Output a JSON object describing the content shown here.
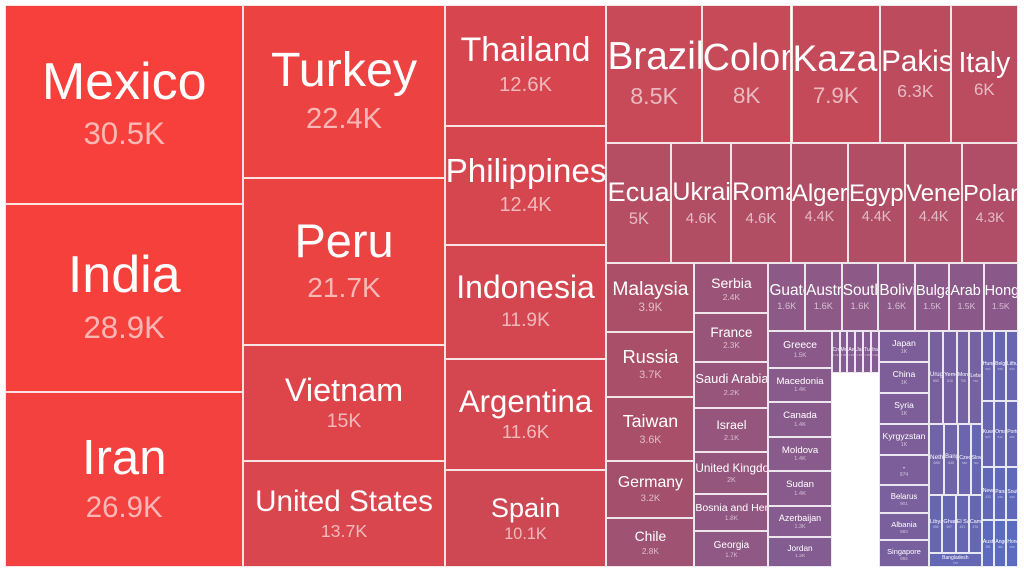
{
  "chart_data": {
    "type": "treemap",
    "title": "",
    "colors": {
      "high": "#f7403b",
      "mid": "#a5506c",
      "low": "#5a6bc0",
      "border": "#ffffff"
    },
    "items": [
      {
        "name": "Mexico",
        "value": 30.5,
        "label": "30.5K"
      },
      {
        "name": "India",
        "value": 28.9,
        "label": "28.9K"
      },
      {
        "name": "Iran",
        "value": 26.9,
        "label": "26.9K"
      },
      {
        "name": "Turkey",
        "value": 22.4,
        "label": "22.4K"
      },
      {
        "name": "Peru",
        "value": 21.7,
        "label": "21.7K"
      },
      {
        "name": "Vietnam",
        "value": 15,
        "label": "15K"
      },
      {
        "name": "United States",
        "value": 13.7,
        "label": "13.7K"
      },
      {
        "name": "Thailand",
        "value": 12.6,
        "label": "12.6K"
      },
      {
        "name": "Philippines",
        "value": 12.4,
        "label": "12.4K"
      },
      {
        "name": "Indonesia",
        "value": 11.9,
        "label": "11.9K"
      },
      {
        "name": "Argentina",
        "value": 11.6,
        "label": "11.6K"
      },
      {
        "name": "Spain",
        "value": 10.1,
        "label": "10.1K"
      },
      {
        "name": "Brazil",
        "value": 8.5,
        "label": "8.5K"
      },
      {
        "name": "Colombia",
        "value": 8,
        "label": "8K"
      },
      {
        "name": "Kazakhstan",
        "value": 7.9,
        "label": "7.9K"
      },
      {
        "name": "Pakistan",
        "value": 6.3,
        "label": "6.3K"
      },
      {
        "name": "Italy",
        "value": 6,
        "label": "6K"
      },
      {
        "name": "Ecuador",
        "value": 5,
        "label": "5K"
      },
      {
        "name": "Ukraine",
        "value": 4.6,
        "label": "4.6K"
      },
      {
        "name": "Romania",
        "value": 4.6,
        "label": "4.6K"
      },
      {
        "name": "Algeria",
        "value": 4.4,
        "label": "4.4K"
      },
      {
        "name": "Egypt",
        "value": 4.4,
        "label": "4.4K"
      },
      {
        "name": "Venezuela",
        "value": 4.4,
        "label": "4.4K"
      },
      {
        "name": "Poland",
        "value": 4.3,
        "label": "4.3K"
      },
      {
        "name": "Malaysia",
        "value": 3.9,
        "label": "3.9K"
      },
      {
        "name": "Russia",
        "value": 3.7,
        "label": "3.7K"
      },
      {
        "name": "Taiwan",
        "value": 3.6,
        "label": "3.6K"
      },
      {
        "name": "Germany",
        "value": 3.2,
        "label": "3.2K"
      },
      {
        "name": "Chile",
        "value": 2.8,
        "label": "2.8K"
      },
      {
        "name": "Serbia",
        "value": 2.4,
        "label": "2.4K"
      },
      {
        "name": "France",
        "value": 2.3,
        "label": "2.3K"
      },
      {
        "name": "Saudi Arabia",
        "value": 2.2,
        "label": "2.2K"
      },
      {
        "name": "Israel",
        "value": 2.1,
        "label": "2.1K"
      },
      {
        "name": "United Kingdom",
        "value": 2,
        "label": "2K"
      },
      {
        "name": "Bosnia and Herzegovina",
        "value": 1.8,
        "label": "1.8K"
      },
      {
        "name": "Georgia",
        "value": 1.7,
        "label": "1.7K"
      },
      {
        "name": "Guatemala",
        "value": 1.6,
        "label": "1.6K"
      },
      {
        "name": "Australia",
        "value": 1.6,
        "label": "1.6K"
      },
      {
        "name": "South Africa",
        "value": 1.6,
        "label": "1.6K"
      },
      {
        "name": "Bolivia",
        "value": 1.6,
        "label": "1.6K"
      },
      {
        "name": "Bulgaria",
        "value": 1.5,
        "label": "1.5K"
      },
      {
        "name": "Arab Emirates",
        "value": 1.5,
        "label": "1.5K"
      },
      {
        "name": "Hong Kong",
        "value": 1.5,
        "label": "1.5K"
      },
      {
        "name": "Greece",
        "value": 1.5,
        "label": "1.5K"
      },
      {
        "name": "Macedonia",
        "value": 1.4,
        "label": "1.4K"
      },
      {
        "name": "Canada",
        "value": 1.4,
        "label": "1.4K"
      },
      {
        "name": "Moldova",
        "value": 1.4,
        "label": "1.4K"
      },
      {
        "name": "Sudan",
        "value": 1.4,
        "label": "1.4K"
      },
      {
        "name": "Azerbaijan",
        "value": 1.3,
        "label": "1.3K"
      },
      {
        "name": "Jordan",
        "value": 1.2,
        "label": "1.2K"
      },
      {
        "name": "Croatia",
        "value": 1.2,
        "label": "1.2K"
      },
      {
        "name": "Morocco",
        "value": 1.2,
        "label": "1.2K"
      },
      {
        "name": "Armenia",
        "value": 1.2,
        "label": "1.2K"
      },
      {
        "name": "Japan",
        "value": 1.2,
        "label": "1.2K"
      },
      {
        "name": "Tunisia",
        "value": 1.2,
        "label": "1.2K"
      },
      {
        "name": "Iraq",
        "value": 1.2,
        "label": "1.2K"
      },
      {
        "name": "Japan",
        "value": 1,
        "label": "1K"
      },
      {
        "name": "China",
        "value": 1,
        "label": "1K"
      },
      {
        "name": "Syria",
        "value": 1,
        "label": "1K"
      },
      {
        "name": "Kyrgyzstan",
        "value": 1,
        "label": "1K"
      },
      {
        "name": "-",
        "value": 0.974,
        "label": "974"
      },
      {
        "name": "Belarus",
        "value": 0.901,
        "label": "901"
      },
      {
        "name": "Albania",
        "value": 0.883,
        "label": "883"
      },
      {
        "name": "Singapore",
        "value": 0.855,
        "label": "855"
      },
      {
        "name": "Uruguay",
        "value": 0.85,
        "label": "850"
      },
      {
        "name": "Yemen",
        "value": 0.816,
        "label": "816"
      },
      {
        "name": "Mongolia",
        "value": 0.755,
        "label": "755"
      },
      {
        "name": "Lebanon",
        "value": 0.739,
        "label": "739"
      },
      {
        "name": "Netherlands",
        "value": 0.688,
        "label": "688"
      },
      {
        "name": "Bangladesh",
        "value": 0.645,
        "label": "645"
      },
      {
        "name": "Czech Republic",
        "value": 0.568,
        "label": "568"
      },
      {
        "name": "Slovakia",
        "value": 0.502,
        "label": "502"
      },
      {
        "name": "Libya",
        "value": 0.498,
        "label": "498"
      },
      {
        "name": "Ghana",
        "value": 0.497,
        "label": "497"
      },
      {
        "name": "El Salvador",
        "value": 0.491,
        "label": "491"
      },
      {
        "name": "Cambodia",
        "value": 0.478,
        "label": "478"
      },
      {
        "name": "Bangladesh",
        "value": 0.478,
        "label": "478"
      },
      {
        "name": "Hungary",
        "value": 0.56,
        "label": "560"
      },
      {
        "name": "Belgium",
        "value": 0.538,
        "label": "538"
      },
      {
        "name": "Lithuania",
        "value": 0.534,
        "label": "534"
      },
      {
        "name": "Kuwait",
        "value": 0.527,
        "label": "527"
      },
      {
        "name": "Oman",
        "value": 0.512,
        "label": "512"
      },
      {
        "name": "Portugal",
        "value": 0.499,
        "label": "499"
      },
      {
        "name": "New Zealand",
        "value": 0.433,
        "label": "433"
      },
      {
        "name": "Panama",
        "value": 0.42,
        "label": "420"
      },
      {
        "name": "South Korea",
        "value": 0.402,
        "label": "402"
      },
      {
        "name": "Austria",
        "value": 0.381,
        "label": "381"
      },
      {
        "name": "Angola",
        "value": 0.36,
        "label": "360"
      },
      {
        "name": "Honduras",
        "value": 0.35,
        "label": "350"
      }
    ]
  }
}
